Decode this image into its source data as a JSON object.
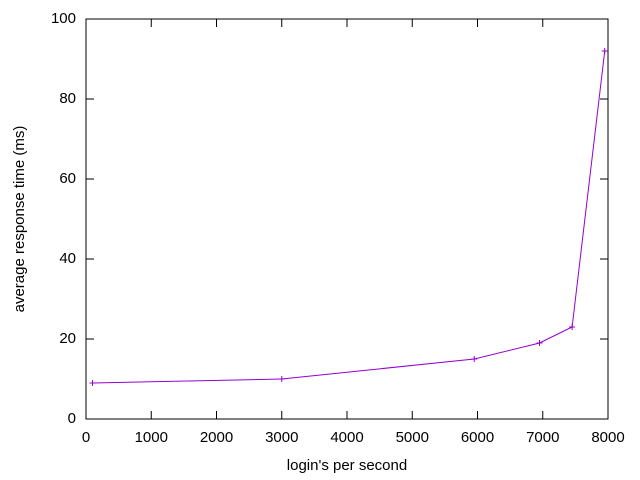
{
  "chart_data": {
    "type": "line",
    "x_label": "login's per second",
    "y_label": "average response time (ms)",
    "x": [
      100,
      3000,
      5950,
      6950,
      7450,
      7950
    ],
    "series": [
      {
        "color": "#9400d3",
        "values": [
          9,
          10,
          15,
          19,
          23,
          92
        ]
      }
    ],
    "xlim": [
      0,
      8000
    ],
    "xticks": [
      0,
      1000,
      2000,
      3000,
      4000,
      5000,
      6000,
      7000,
      8000
    ],
    "ylim": [
      0,
      100
    ],
    "yticks": [
      0,
      20,
      40,
      60,
      80,
      100
    ],
    "grid": false
  }
}
